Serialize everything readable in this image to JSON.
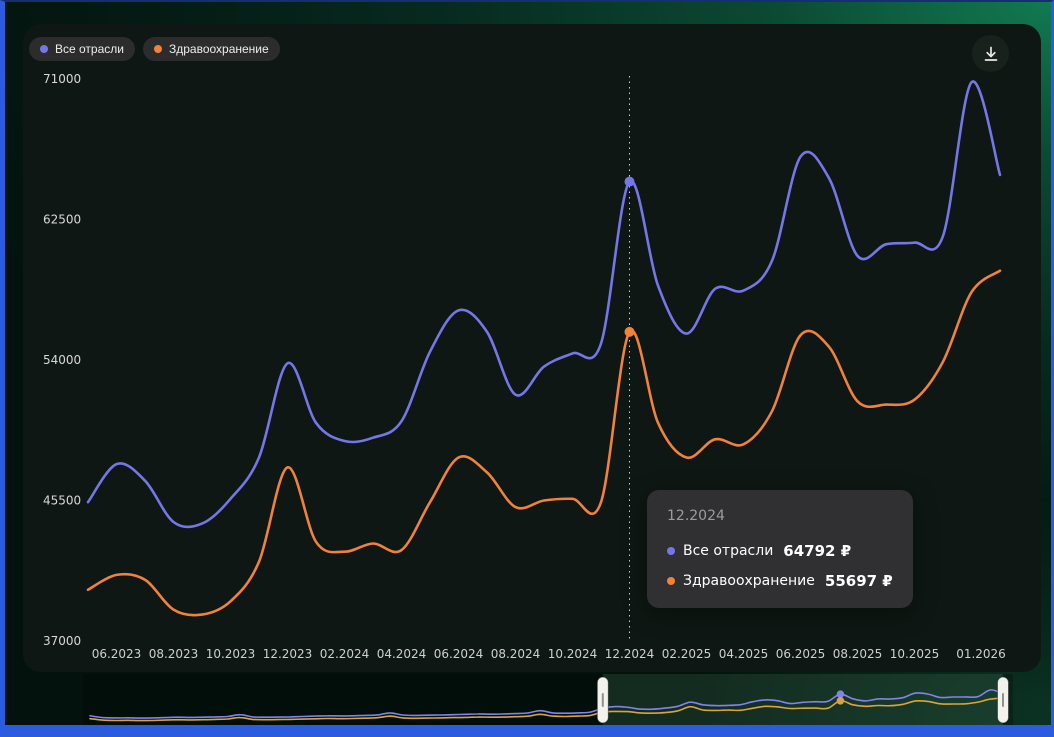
{
  "colors": {
    "frame_blue": "#2b5ce0",
    "panel_bg": "#0e1713",
    "series_all_industries": "#7577e8",
    "series_healthcare": "#f0823a",
    "minimap_all_industries": "#8183ea",
    "minimap_healthcare": "#d9a43e"
  },
  "legend": {
    "items": [
      {
        "label": "Все отрасли",
        "color": "#7577e8"
      },
      {
        "label": "Здравоохранение",
        "color": "#f0823a"
      }
    ]
  },
  "toolbar": {
    "download_icon": "download"
  },
  "tooltip": {
    "date": "12.2024",
    "rows": [
      {
        "label": "Все отрасли",
        "value": "64792 ₽",
        "color": "#7577e8"
      },
      {
        "label": "Здравоохранение",
        "value": "55697 ₽",
        "color": "#f0823a"
      }
    ]
  },
  "chart_data": {
    "type": "line",
    "title": "",
    "currency": "₽",
    "ylim": [
      37000,
      71000
    ],
    "y_ticks": [
      71000,
      62500,
      54000,
      45500,
      37000
    ],
    "x": [
      "05.2023",
      "06.2023",
      "07.2023",
      "08.2023",
      "09.2023",
      "10.2023",
      "11.2023",
      "12.2023",
      "01.2024",
      "02.2024",
      "03.2024",
      "04.2024",
      "05.2024",
      "06.2024",
      "07.2024",
      "08.2024",
      "09.2024",
      "10.2024",
      "11.2024",
      "12.2024",
      "01.2025",
      "02.2025",
      "03.2025",
      "04.2025",
      "05.2025",
      "06.2025",
      "07.2025",
      "08.2025",
      "09.2025",
      "10.2025",
      "11.2025",
      "12.2025",
      "01.2026"
    ],
    "x_ticks": [
      "06.2023",
      "08.2023",
      "10.2023",
      "12.2023",
      "02.2024",
      "04.2024",
      "06.2024",
      "08.2024",
      "10.2024",
      "12.2024",
      "02.2025",
      "04.2025",
      "06.2025",
      "08.2025",
      "10.2025",
      "01.2026"
    ],
    "series": [
      {
        "name": "Все отрасли",
        "color": "#7577e8",
        "values": [
          45400,
          47700,
          46700,
          44200,
          44100,
          45600,
          48100,
          53800,
          50200,
          49100,
          49300,
          50300,
          54500,
          57000,
          55700,
          51900,
          53600,
          54400,
          55000,
          64792,
          58500,
          55600,
          58300,
          58200,
          60000,
          66300,
          65000,
          60300,
          61000,
          61100,
          61500,
          70800,
          65200
        ]
      },
      {
        "name": "Здравоохранение",
        "color": "#f0823a",
        "values": [
          40100,
          41000,
          40700,
          38900,
          38600,
          39400,
          41800,
          47500,
          43000,
          42400,
          42900,
          42500,
          45400,
          48100,
          47200,
          45100,
          45500,
          45600,
          45400,
          55697,
          50200,
          48100,
          49200,
          48900,
          50900,
          55500,
          54800,
          51500,
          51300,
          51600,
          53900,
          58100,
          59400
        ]
      }
    ],
    "highlight": {
      "index": 19,
      "x_label": "12.2024",
      "values": [
        64792,
        55697
      ]
    },
    "minimap": {
      "selection_start_index": 41,
      "selection_end_index": 73,
      "highlight_index": 60,
      "series": [
        {
          "name": "Все отрасли",
          "color": "#8183ea",
          "values": [
            35000,
            32500,
            32000,
            32200,
            31800,
            32000,
            32500,
            33000,
            32800,
            33000,
            33500,
            34000,
            36500,
            33500,
            33000,
            33200,
            33500,
            34000,
            34500,
            35000,
            34800,
            35000,
            35500,
            36200,
            39000,
            36000,
            35500,
            35800,
            36000,
            36500,
            37000,
            37500,
            37200,
            37500,
            38000,
            38800,
            42000,
            39000,
            38500,
            39000,
            40000,
            45400,
            47700,
            46700,
            44200,
            44100,
            45600,
            48100,
            53800,
            50200,
            49100,
            49300,
            50300,
            54500,
            57000,
            55700,
            51900,
            53600,
            54400,
            55000,
            64792,
            58500,
            55600,
            58300,
            58200,
            60000,
            66300,
            65000,
            60300,
            61000,
            61100,
            61500,
            70800,
            65200
          ]
        },
        {
          "name": "Здравоохранение",
          "color": "#d9a43e",
          "values": [
            31000,
            29000,
            28500,
            28700,
            28300,
            28500,
            29000,
            29500,
            29300,
            29500,
            30000,
            30500,
            32500,
            30000,
            29500,
            29700,
            30000,
            30400,
            30800,
            31200,
            31000,
            31200,
            31700,
            32300,
            34500,
            32000,
            31500,
            31800,
            32000,
            32400,
            32800,
            33200,
            33000,
            33200,
            33700,
            34400,
            37000,
            34500,
            34000,
            34500,
            35500,
            40100,
            41000,
            40700,
            38900,
            38600,
            39400,
            41800,
            47500,
            43000,
            42400,
            42900,
            42500,
            45400,
            48100,
            47200,
            45100,
            45500,
            45600,
            45400,
            55697,
            50200,
            48100,
            49200,
            48900,
            50900,
            55500,
            54800,
            51500,
            51300,
            51600,
            53900,
            58100,
            59400
          ]
        }
      ]
    }
  }
}
